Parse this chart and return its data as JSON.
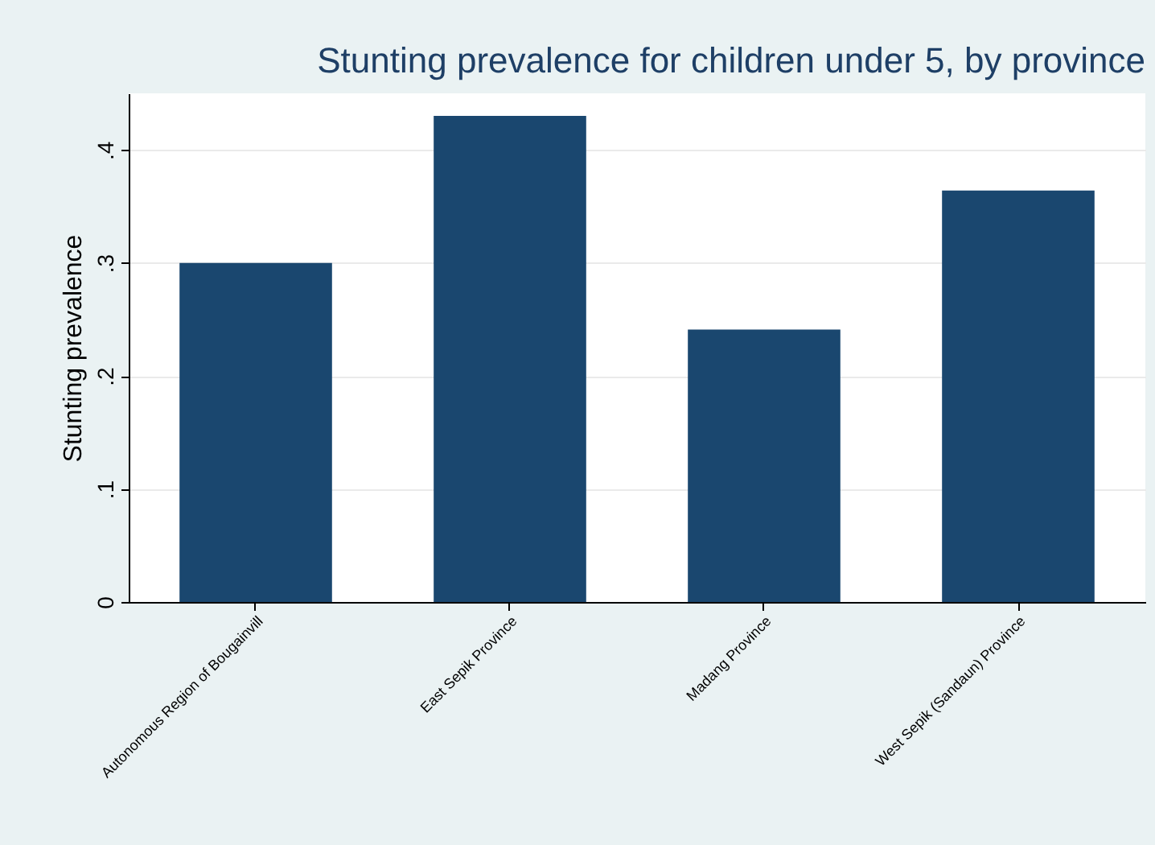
{
  "chart_data": {
    "type": "bar",
    "title": "Stunting prevalence for children under 5, by province",
    "ylabel": "Stunting prevalence",
    "categories": [
      "Autonomous Region of Bougainvill",
      "East Sepik Province",
      "Madang Province",
      "West Sepik (Sandaun) Province"
    ],
    "values": [
      0.3,
      0.43,
      0.241,
      0.364
    ],
    "color": "#1a476f",
    "ylim": [
      0,
      0.45
    ],
    "yticks": [
      0,
      {
        "value": 0.1,
        "label": ".1"
      },
      {
        "value": 0.2,
        "label": ".2"
      },
      {
        "value": 0.3,
        "label": ".3"
      },
      {
        "value": 0.4,
        "label": ".4"
      }
    ],
    "grid": "y"
  }
}
